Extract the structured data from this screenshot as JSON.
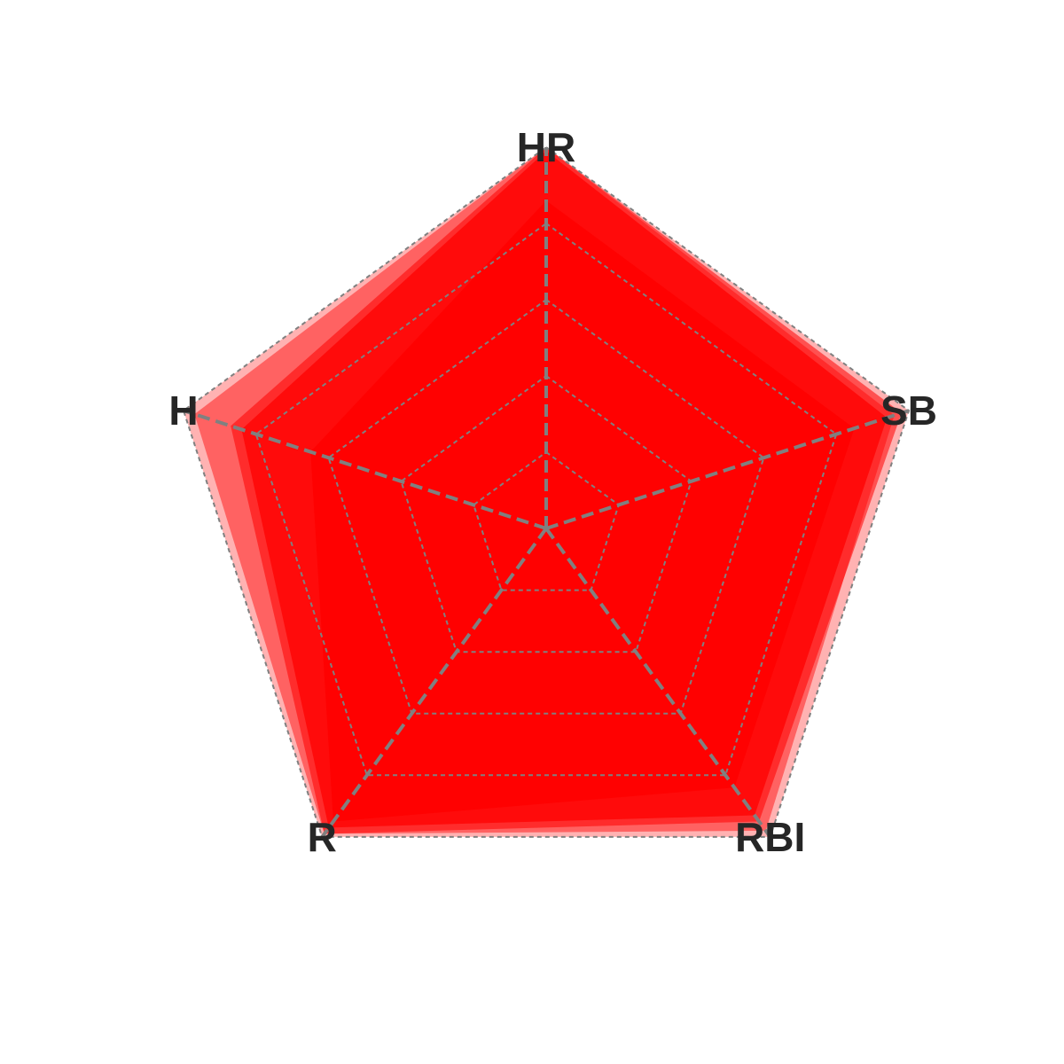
{
  "chart_data": {
    "type": "radar",
    "title": "",
    "axes": [
      "HR",
      "SB",
      "RBI",
      "R",
      "H"
    ],
    "rlim": [
      0,
      1
    ],
    "grid": {
      "on": true,
      "style": "dashed",
      "rings": [
        0.2,
        0.4,
        0.6,
        0.8,
        1.0
      ]
    },
    "legend": "none",
    "fill_color": "#ff0000",
    "grid_color": "#808080",
    "label_color": "#262626",
    "series": [
      {
        "values": [
          1.0,
          1.0,
          1.0,
          1.0,
          1.0
        ],
        "opacity": 0.3
      },
      {
        "values": [
          1.0,
          0.96,
          0.98,
          0.99,
          0.97
        ],
        "opacity": 0.45
      },
      {
        "values": [
          1.0,
          0.98,
          0.95,
          0.99,
          0.87
        ],
        "opacity": 0.55
      },
      {
        "values": [
          0.99,
          0.94,
          0.93,
          0.97,
          0.84
        ],
        "opacity": 0.75
      },
      {
        "values": [
          0.86,
          0.85,
          0.84,
          0.95,
          0.65
        ],
        "opacity": 0.85
      }
    ]
  }
}
